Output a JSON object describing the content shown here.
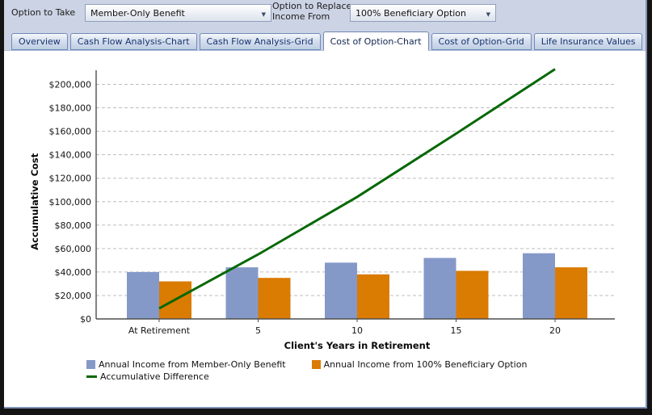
{
  "toolbar": {
    "fields": [
      {
        "label": "Option to Take",
        "value": "Member-Only Benefit"
      },
      {
        "label": "Option to Replace Income From",
        "value": "100% Beneficiary Option"
      }
    ]
  },
  "tabs": [
    {
      "label": "Overview",
      "active": false
    },
    {
      "label": "Cash Flow Analysis-Chart",
      "active": false
    },
    {
      "label": "Cash Flow Analysis-Grid",
      "active": false
    },
    {
      "label": "Cost of Option-Chart",
      "active": true
    },
    {
      "label": "Cost of Option-Grid",
      "active": false
    },
    {
      "label": "Life Insurance Values",
      "active": false
    }
  ],
  "chart_data": {
    "type": "bar",
    "categories": [
      "At Retirement",
      "5",
      "10",
      "15",
      "20"
    ],
    "series": [
      {
        "name": "Annual Income from Member-Only Benefit",
        "type": "bar",
        "color": "#8599C9",
        "values": [
          40000,
          44000,
          48000,
          52000,
          56000
        ]
      },
      {
        "name": "Annual Income from 100% Beneficiary Option",
        "type": "bar",
        "color": "#DA7B02",
        "values": [
          32000,
          35000,
          38000,
          41000,
          44000
        ]
      },
      {
        "name": "Accumulative Difference",
        "type": "line",
        "color": "#056805",
        "values": [
          9000,
          55000,
          104000,
          158000,
          213000
        ]
      }
    ],
    "xlabel": "Client's Years in Retirement",
    "ylabel": "Accumulative Cost",
    "ylim": [
      0,
      200000
    ],
    "ytick_step": 20000,
    "ytick_prefix": "$",
    "grid": "dashed-horizontal",
    "legend_position": "bottom"
  }
}
